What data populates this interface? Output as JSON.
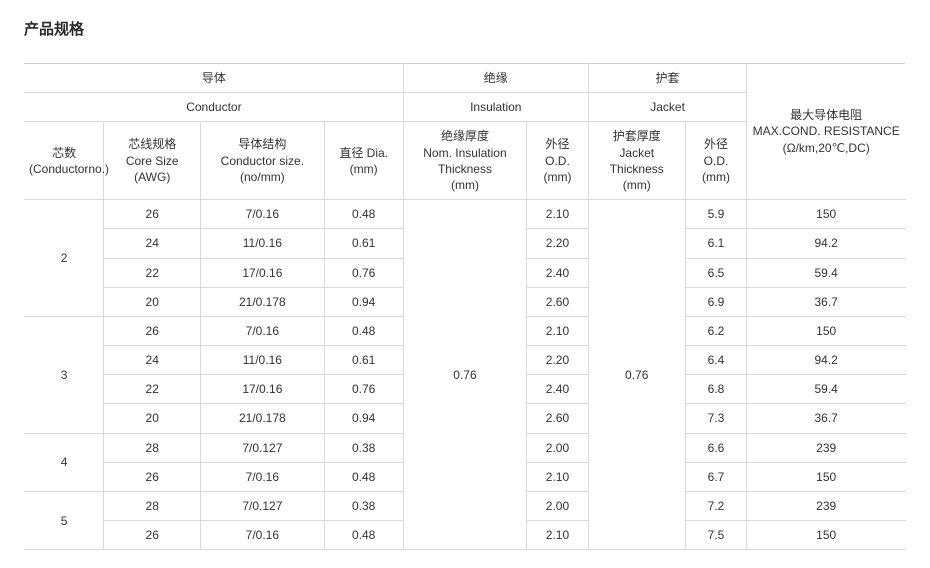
{
  "title": "产品规格",
  "colors": {
    "text": "#333333",
    "border": "#d9d9d9",
    "background": "#ffffff"
  },
  "fontsize": {
    "title": 15,
    "body": 12
  },
  "table": {
    "columns": [
      {
        "key": "core_no",
        "width_pct": 9
      },
      {
        "key": "awg",
        "width_pct": 11
      },
      {
        "key": "conductor_size",
        "width_pct": 14
      },
      {
        "key": "dia",
        "width_pct": 9
      },
      {
        "key": "insul_thick",
        "width_pct": 14
      },
      {
        "key": "od_insul",
        "width_pct": 7
      },
      {
        "key": "jacket_thick",
        "width_pct": 11
      },
      {
        "key": "od_jacket",
        "width_pct": 7
      },
      {
        "key": "resistance",
        "width_pct": 18
      }
    ],
    "header": {
      "group_conductor_cn": "导体",
      "group_conductor_en": "Conductor",
      "group_insul_cn": "绝缘",
      "group_insul_en": "Insulation",
      "group_jacket_cn": "护套",
      "group_jacket_en": "Jacket",
      "core_no": "芯数\n(Conductorno.)",
      "awg": "芯线规格\nCore Size\n(AWG)",
      "conductor_size": "导体结构\nConductor size.\n(no/mm)",
      "dia": "直径 Dia.\n(mm)",
      "insul_thick": "绝缘厚度\nNom. Insulation\nThickness\n(mm)",
      "od_insul": "外径\nO.D.\n(mm)",
      "jacket_thick": "护套厚度\nJacket\nThickness\n(mm)",
      "od_jacket": "外径\nO.D.\n(mm)",
      "resistance": "最大导体电阻\nMAX.COND. RESISTANCE\n(Ω/km,20℃,DC)"
    },
    "shared": {
      "insul_thick": "0.76",
      "jacket_thick": "0.76"
    },
    "groups": [
      {
        "core_no": "2",
        "rows": [
          {
            "awg": "26",
            "conductor_size": "7/0.16",
            "dia": "0.48",
            "od_insul": "2.10",
            "od_jacket": "5.9",
            "resistance": "150"
          },
          {
            "awg": "24",
            "conductor_size": "11/0.16",
            "dia": "0.61",
            "od_insul": "2.20",
            "od_jacket": "6.1",
            "resistance": "94.2"
          },
          {
            "awg": "22",
            "conductor_size": "17/0.16",
            "dia": "0.76",
            "od_insul": "2.40",
            "od_jacket": "6.5",
            "resistance": "59.4"
          },
          {
            "awg": "20",
            "conductor_size": "21/0.178",
            "dia": "0.94",
            "od_insul": "2.60",
            "od_jacket": "6.9",
            "resistance": "36.7"
          }
        ]
      },
      {
        "core_no": "3",
        "rows": [
          {
            "awg": "26",
            "conductor_size": "7/0.16",
            "dia": "0.48",
            "od_insul": "2.10",
            "od_jacket": "6.2",
            "resistance": "150"
          },
          {
            "awg": "24",
            "conductor_size": "11/0.16",
            "dia": "0.61",
            "od_insul": "2.20",
            "od_jacket": "6.4",
            "resistance": "94.2"
          },
          {
            "awg": "22",
            "conductor_size": "17/0.16",
            "dia": "0.76",
            "od_insul": "2.40",
            "od_jacket": "6.8",
            "resistance": "59.4"
          },
          {
            "awg": "20",
            "conductor_size": "21/0.178",
            "dia": "0.94",
            "od_insul": "2.60",
            "od_jacket": "7.3",
            "resistance": "36.7"
          }
        ]
      },
      {
        "core_no": "4",
        "rows": [
          {
            "awg": "28",
            "conductor_size": "7/0.127",
            "dia": "0.38",
            "od_insul": "2.00",
            "od_jacket": "6.6",
            "resistance": "239"
          },
          {
            "awg": "26",
            "conductor_size": "7/0.16",
            "dia": "0.48",
            "od_insul": "2.10",
            "od_jacket": "6.7",
            "resistance": "150"
          }
        ]
      },
      {
        "core_no": "5",
        "rows": [
          {
            "awg": "28",
            "conductor_size": "7/0.127",
            "dia": "0.38",
            "od_insul": "2.00",
            "od_jacket": "7.2",
            "resistance": "239"
          },
          {
            "awg": "26",
            "conductor_size": "7/0.16",
            "dia": "0.48",
            "od_insul": "2.10",
            "od_jacket": "7.5",
            "resistance": "150"
          }
        ]
      }
    ]
  }
}
